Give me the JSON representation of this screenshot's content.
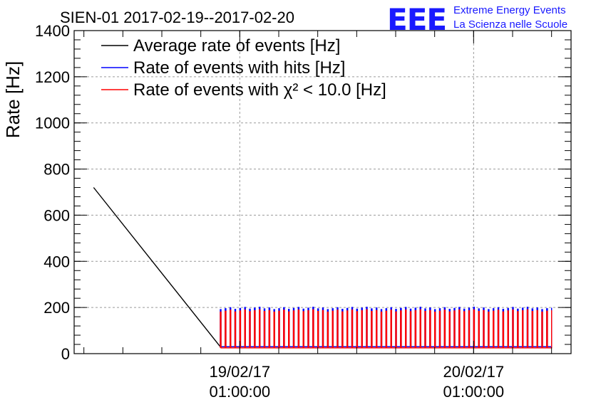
{
  "header": {
    "title": "SIEN-01 2017-02-19--2017-02-20",
    "logo_letters": "EEE",
    "logo_line1": "Extreme Energy Events",
    "logo_line2": "La Scienza nelle Scuole"
  },
  "colors": {
    "average": "#000000",
    "hits": "#0000ff",
    "chi2": "#ff0000",
    "logo": "#1a1aff"
  },
  "chart_data": {
    "type": "line",
    "ylabel": "Rate [Hz]",
    "xlabel": "",
    "ylim": [
      0,
      1400
    ],
    "yticks": [
      0,
      200,
      400,
      600,
      800,
      1000,
      1200,
      1400
    ],
    "xlim": [
      "2017-02-18 08:00",
      "2017-02-20 11:00"
    ],
    "xticks": [
      {
        "time": "2017-02-19 01:00",
        "date_label": "19/02/17",
        "time_label": "01:00:00"
      },
      {
        "time": "2017-02-20 01:00",
        "date_label": "20/02/17",
        "time_label": "01:00:00"
      }
    ],
    "grid": true,
    "legend_position": "top-left",
    "legend": [
      {
        "label": "Average rate of events [Hz]",
        "series": "average"
      },
      {
        "label": "Rate of events with hits [Hz]",
        "series": "hits"
      },
      {
        "label": "Rate of events with χ² < 10.0 [Hz]",
        "series": "chi2"
      }
    ],
    "series": [
      {
        "name": "Average rate of events [Hz]",
        "key": "average",
        "points": [
          [
            "2017-02-18 10:00",
            720
          ],
          [
            "2017-02-18 23:00",
            30
          ],
          [
            "2017-02-20 09:00",
            30
          ]
        ]
      },
      {
        "name": "Rate of events with hits [Hz]",
        "key": "hits",
        "pattern": "spikes",
        "start": "2017-02-18 23:00",
        "end": "2017-02-20 09:00",
        "period_minutes": 30,
        "high": 196,
        "low": 30
      },
      {
        "name": "Rate of events with χ² < 10.0 [Hz]",
        "key": "chi2",
        "pattern": "spikes",
        "start": "2017-02-18 23:00",
        "end": "2017-02-20 09:00",
        "period_minutes": 30,
        "high": 185,
        "low": 25
      }
    ]
  }
}
